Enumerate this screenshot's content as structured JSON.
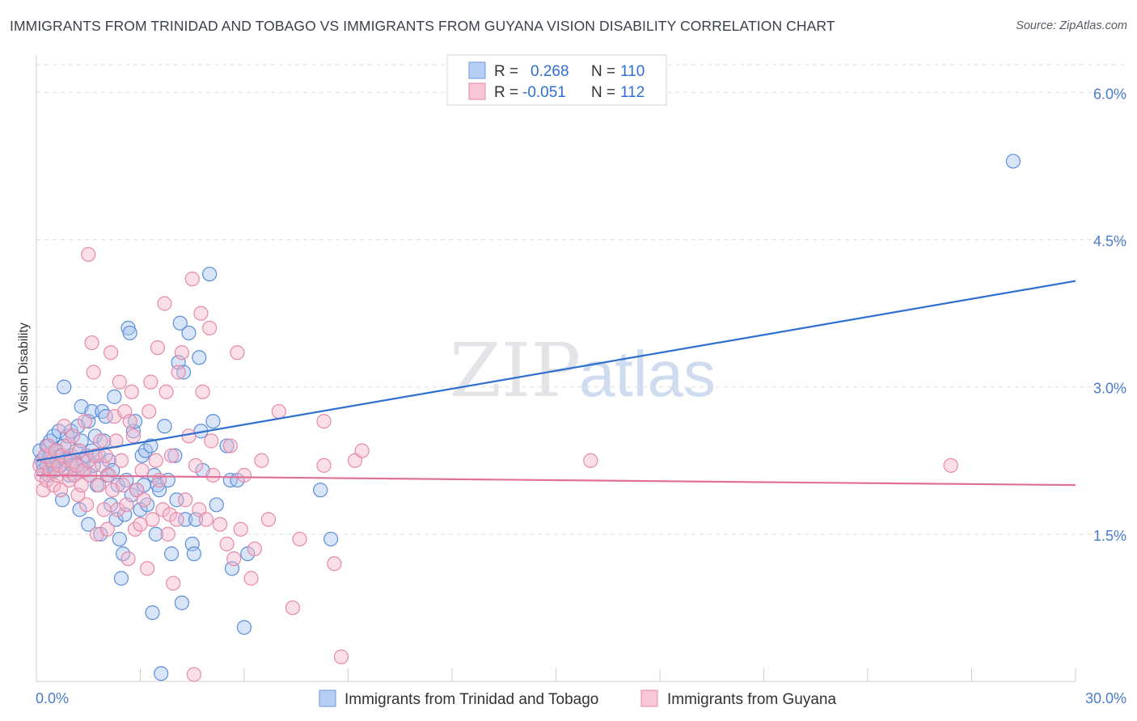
{
  "title": "IMMIGRANTS FROM TRINIDAD AND TOBAGO VS IMMIGRANTS FROM GUYANA VISION DISABILITY CORRELATION CHART",
  "source": "Source: ZipAtlas.com",
  "watermark": {
    "zip": "ZIP",
    "atlas": "atlas"
  },
  "colors": {
    "blue_fill": "#a9c4ee",
    "blue_stroke": "#5b8ed8",
    "blue_line": "#2f6fd0",
    "pink_fill": "#f5b8cb",
    "pink_stroke": "#e58aa8",
    "pink_line": "#e0709a",
    "tick_text": "#4a7cc9",
    "grid": "#dddddd"
  },
  "legend": {
    "rows": [
      {
        "r_label": "R =",
        "r_value": "0.268",
        "n_label": "N =",
        "n_value": "110",
        "series": "blue"
      },
      {
        "r_label": "R =",
        "r_value": "-0.051",
        "n_label": "N =",
        "n_value": "112",
        "series": "pink"
      }
    ]
  },
  "chart_data": {
    "type": "scatter",
    "ylabel": "Vision Disability",
    "xlabel": "",
    "xlim": [
      0,
      30
    ],
    "ylim": [
      0,
      6.3
    ],
    "x_tick_labels": [
      "0.0%",
      "30.0%"
    ],
    "y_ticks": [
      1.5,
      3.0,
      4.5,
      6.0
    ],
    "y_tick_labels": [
      "1.5%",
      "3.0%",
      "4.5%",
      "6.0%"
    ],
    "grid": true,
    "legend_position": "top-center",
    "series": [
      {
        "name": "Immigrants from Trinidad and Tobago",
        "color": "blue",
        "r": 0.268,
        "n": 110,
        "trend": {
          "x": [
            0,
            30
          ],
          "y": [
            2.25,
            4.08
          ]
        },
        "points": [
          [
            0.1,
            2.35
          ],
          [
            0.15,
            2.25
          ],
          [
            0.2,
            2.2
          ],
          [
            0.2,
            2.15
          ],
          [
            0.25,
            2.3
          ],
          [
            0.3,
            2.4
          ],
          [
            0.3,
            2.2
          ],
          [
            0.35,
            2.1
          ],
          [
            0.4,
            2.3
          ],
          [
            0.4,
            2.45
          ],
          [
            0.45,
            2.25
          ],
          [
            0.5,
            2.5
          ],
          [
            0.5,
            2.2
          ],
          [
            0.55,
            2.15
          ],
          [
            0.6,
            2.35
          ],
          [
            0.6,
            2.25
          ],
          [
            0.65,
            2.55
          ],
          [
            0.7,
            2.2
          ],
          [
            0.7,
            2.3
          ],
          [
            0.75,
            1.85
          ],
          [
            0.8,
            3.0
          ],
          [
            0.8,
            2.4
          ],
          [
            0.85,
            2.25
          ],
          [
            0.9,
            2.5
          ],
          [
            0.95,
            2.1
          ],
          [
            1.0,
            2.55
          ],
          [
            1.0,
            2.3
          ],
          [
            1.05,
            2.2
          ],
          [
            1.1,
            2.1
          ],
          [
            1.15,
            2.35
          ],
          [
            1.2,
            2.6
          ],
          [
            1.2,
            2.2
          ],
          [
            1.25,
            1.75
          ],
          [
            1.3,
            2.45
          ],
          [
            1.3,
            2.8
          ],
          [
            1.35,
            2.25
          ],
          [
            1.4,
            2.15
          ],
          [
            1.45,
            2.3
          ],
          [
            1.5,
            2.65
          ],
          [
            1.5,
            1.6
          ],
          [
            1.55,
            2.1
          ],
          [
            1.6,
            2.35
          ],
          [
            1.6,
            2.75
          ],
          [
            1.65,
            2.2
          ],
          [
            1.7,
            2.5
          ],
          [
            1.75,
            2.0
          ],
          [
            1.8,
            2.3
          ],
          [
            1.85,
            1.5
          ],
          [
            1.9,
            2.75
          ],
          [
            1.95,
            2.45
          ],
          [
            2.0,
            2.7
          ],
          [
            2.05,
            2.1
          ],
          [
            2.1,
            2.25
          ],
          [
            2.15,
            1.8
          ],
          [
            2.2,
            2.15
          ],
          [
            2.25,
            2.9
          ],
          [
            2.3,
            1.65
          ],
          [
            2.35,
            2.0
          ],
          [
            2.4,
            1.45
          ],
          [
            2.45,
            1.05
          ],
          [
            2.5,
            1.3
          ],
          [
            2.55,
            1.7
          ],
          [
            2.6,
            2.05
          ],
          [
            2.65,
            3.6
          ],
          [
            2.7,
            3.55
          ],
          [
            2.75,
            1.9
          ],
          [
            2.8,
            2.55
          ],
          [
            2.85,
            2.65
          ],
          [
            2.9,
            1.95
          ],
          [
            3.0,
            1.75
          ],
          [
            3.05,
            2.3
          ],
          [
            3.1,
            2.0
          ],
          [
            3.15,
            2.35
          ],
          [
            3.2,
            1.8
          ],
          [
            3.3,
            2.4
          ],
          [
            3.35,
            0.7
          ],
          [
            3.4,
            2.1
          ],
          [
            3.45,
            1.5
          ],
          [
            3.5,
            2.0
          ],
          [
            3.55,
            1.95
          ],
          [
            3.6,
            0.08
          ],
          [
            3.7,
            2.6
          ],
          [
            3.8,
            2.05
          ],
          [
            3.9,
            1.3
          ],
          [
            4.0,
            2.3
          ],
          [
            4.05,
            1.85
          ],
          [
            4.1,
            3.25
          ],
          [
            4.15,
            3.65
          ],
          [
            4.2,
            0.8
          ],
          [
            4.25,
            3.15
          ],
          [
            4.3,
            1.65
          ],
          [
            4.4,
            3.55
          ],
          [
            4.5,
            1.4
          ],
          [
            4.55,
            1.3
          ],
          [
            4.6,
            1.65
          ],
          [
            4.7,
            3.3
          ],
          [
            4.75,
            2.55
          ],
          [
            4.8,
            2.15
          ],
          [
            5.0,
            4.15
          ],
          [
            5.1,
            2.65
          ],
          [
            5.2,
            1.8
          ],
          [
            5.5,
            2.4
          ],
          [
            5.6,
            2.05
          ],
          [
            5.65,
            1.15
          ],
          [
            5.8,
            2.05
          ],
          [
            6.0,
            0.55
          ],
          [
            6.1,
            1.3
          ],
          [
            8.2,
            1.95
          ],
          [
            8.5,
            1.45
          ],
          [
            28.2,
            5.3
          ]
        ]
      },
      {
        "name": "Immigrants from Guyana",
        "color": "pink",
        "r": -0.051,
        "n": 112,
        "trend": {
          "x": [
            0,
            30
          ],
          "y": [
            2.1,
            2.0
          ]
        },
        "points": [
          [
            0.1,
            2.2
          ],
          [
            0.15,
            2.1
          ],
          [
            0.2,
            1.95
          ],
          [
            0.25,
            2.3
          ],
          [
            0.3,
            2.05
          ],
          [
            0.35,
            2.4
          ],
          [
            0.4,
            2.15
          ],
          [
            0.45,
            2.25
          ],
          [
            0.5,
            2.0
          ],
          [
            0.55,
            2.35
          ],
          [
            0.6,
            2.1
          ],
          [
            0.65,
            2.2
          ],
          [
            0.7,
            1.95
          ],
          [
            0.75,
            2.3
          ],
          [
            0.8,
            2.6
          ],
          [
            0.85,
            2.15
          ],
          [
            0.9,
            2.4
          ],
          [
            0.95,
            2.05
          ],
          [
            1.0,
            2.25
          ],
          [
            1.05,
            2.5
          ],
          [
            1.1,
            2.1
          ],
          [
            1.15,
            2.2
          ],
          [
            1.2,
            1.9
          ],
          [
            1.25,
            2.35
          ],
          [
            1.3,
            2.0
          ],
          [
            1.35,
            2.15
          ],
          [
            1.4,
            2.65
          ],
          [
            1.45,
            1.8
          ],
          [
            1.5,
            4.35
          ],
          [
            1.5,
            2.25
          ],
          [
            1.55,
            2.1
          ],
          [
            1.6,
            3.45
          ],
          [
            1.65,
            3.15
          ],
          [
            1.7,
            2.3
          ],
          [
            1.75,
            1.5
          ],
          [
            1.8,
            2.0
          ],
          [
            1.85,
            2.45
          ],
          [
            1.9,
            2.2
          ],
          [
            1.95,
            1.75
          ],
          [
            2.0,
            2.3
          ],
          [
            2.05,
            1.55
          ],
          [
            2.1,
            2.1
          ],
          [
            2.15,
            3.35
          ],
          [
            2.2,
            1.95
          ],
          [
            2.25,
            2.7
          ],
          [
            2.3,
            2.45
          ],
          [
            2.35,
            1.75
          ],
          [
            2.4,
            3.05
          ],
          [
            2.45,
            2.25
          ],
          [
            2.5,
            2.0
          ],
          [
            2.55,
            2.75
          ],
          [
            2.6,
            1.8
          ],
          [
            2.65,
            1.25
          ],
          [
            2.7,
            2.65
          ],
          [
            2.75,
            2.95
          ],
          [
            2.8,
            2.5
          ],
          [
            2.85,
            1.55
          ],
          [
            2.9,
            1.95
          ],
          [
            3.0,
            1.6
          ],
          [
            3.05,
            2.15
          ],
          [
            3.1,
            1.85
          ],
          [
            3.2,
            1.15
          ],
          [
            3.25,
            2.75
          ],
          [
            3.3,
            3.05
          ],
          [
            3.35,
            1.65
          ],
          [
            3.45,
            2.25
          ],
          [
            3.5,
            3.4
          ],
          [
            3.55,
            2.05
          ],
          [
            3.65,
            1.75
          ],
          [
            3.7,
            3.85
          ],
          [
            3.75,
            2.95
          ],
          [
            3.8,
            1.5
          ],
          [
            3.85,
            1.7
          ],
          [
            3.9,
            2.3
          ],
          [
            3.95,
            1.0
          ],
          [
            4.05,
            1.65
          ],
          [
            4.1,
            3.15
          ],
          [
            4.2,
            3.35
          ],
          [
            4.3,
            1.85
          ],
          [
            4.4,
            2.5
          ],
          [
            4.5,
            4.1
          ],
          [
            4.55,
            0.07
          ],
          [
            4.6,
            2.2
          ],
          [
            4.7,
            1.75
          ],
          [
            4.75,
            3.75
          ],
          [
            4.8,
            2.95
          ],
          [
            4.9,
            1.65
          ],
          [
            5.0,
            3.6
          ],
          [
            5.05,
            2.45
          ],
          [
            5.1,
            2.1
          ],
          [
            5.3,
            1.6
          ],
          [
            5.5,
            1.4
          ],
          [
            5.6,
            2.4
          ],
          [
            5.7,
            1.25
          ],
          [
            5.8,
            3.35
          ],
          [
            5.9,
            1.55
          ],
          [
            6.0,
            2.1
          ],
          [
            6.2,
            1.05
          ],
          [
            6.3,
            1.35
          ],
          [
            6.5,
            2.25
          ],
          [
            6.7,
            1.65
          ],
          [
            7.0,
            2.75
          ],
          [
            7.4,
            0.75
          ],
          [
            7.6,
            1.45
          ],
          [
            8.3,
            2.65
          ],
          [
            8.3,
            2.2
          ],
          [
            8.6,
            1.2
          ],
          [
            8.8,
            0.25
          ],
          [
            9.2,
            2.25
          ],
          [
            9.4,
            2.35
          ],
          [
            16.0,
            2.25
          ],
          [
            26.4,
            2.2
          ]
        ]
      }
    ]
  },
  "bottom_legend": [
    {
      "label": "Immigrants from Trinidad and Tobago",
      "series": "blue"
    },
    {
      "label": "Immigrants from Guyana",
      "series": "pink"
    }
  ]
}
